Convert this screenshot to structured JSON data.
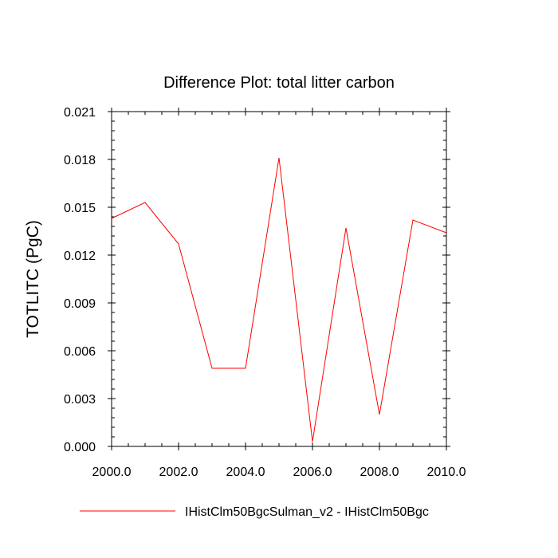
{
  "chart_data": {
    "type": "line",
    "title": "Difference Plot: total litter carbon",
    "xlabel": "",
    "ylabel": "TOTLITC  (PgC)",
    "xlim": [
      2000,
      2010
    ],
    "ylim": [
      0,
      0.021
    ],
    "xticks": [
      "2000.0",
      "2002.0",
      "2004.0",
      "2006.0",
      "2008.0",
      "2010.0"
    ],
    "yticks": [
      "0.000",
      "0.003",
      "0.006",
      "0.009",
      "0.012",
      "0.015",
      "0.018",
      "0.021"
    ],
    "grid": false,
    "legend_position": "bottom",
    "series": [
      {
        "name": "IHistClm50BgcSulman_v2 - IHistClm50Bgc",
        "color": "#ff0000",
        "x": [
          2000,
          2001,
          2002,
          2003,
          2004,
          2005,
          2006,
          2007,
          2008,
          2009,
          2010
        ],
        "y": [
          0.0143,
          0.0153,
          0.0127,
          0.0049,
          0.0049,
          0.0181,
          0.0003,
          0.0137,
          0.002,
          0.0142,
          0.0134
        ]
      }
    ]
  }
}
